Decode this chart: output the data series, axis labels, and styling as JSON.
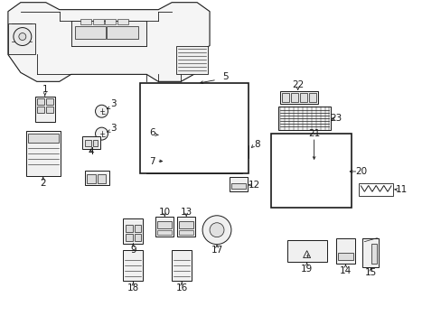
{
  "figsize": [
    4.89,
    3.6
  ],
  "dpi": 100,
  "bg": "#ffffff",
  "lc": "#1a1a1a",
  "lw_thin": 0.5,
  "lw_med": 0.8,
  "lw_thick": 1.0,
  "label_fs": 7.5
}
